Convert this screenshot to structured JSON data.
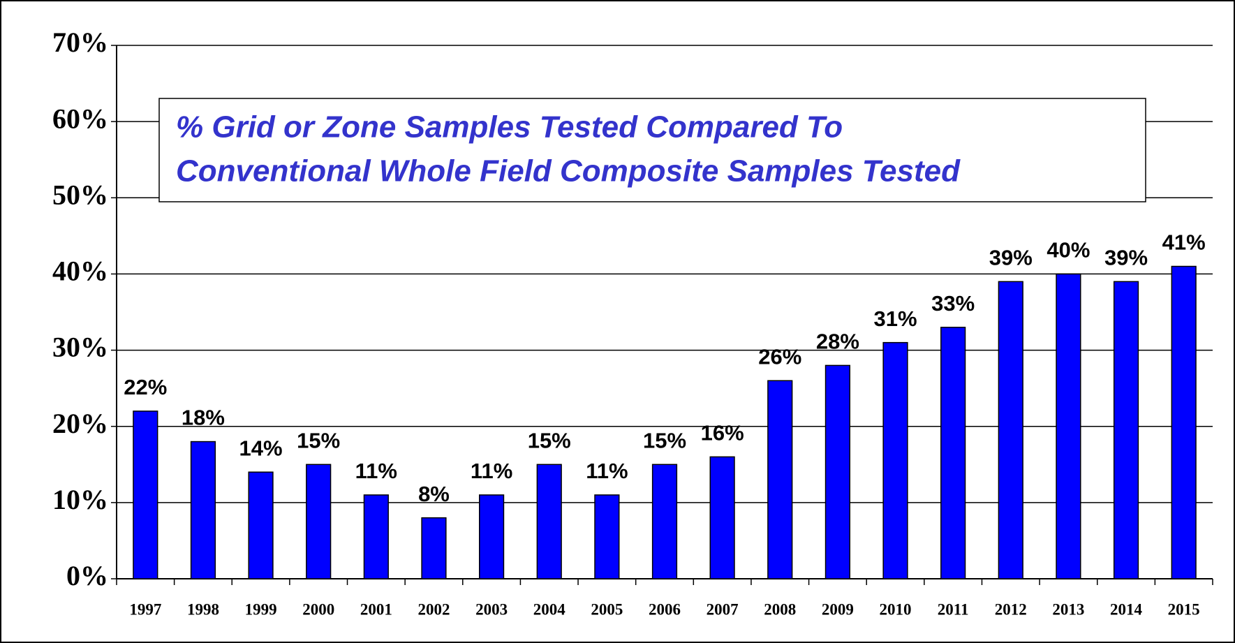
{
  "chart_data": {
    "type": "bar",
    "title": [
      "% Grid or Zone Samples Tested Compared To",
      "Conventional Whole Field Composite Samples Tested"
    ],
    "categories": [
      "1997",
      "1998",
      "1999",
      "2000",
      "2001",
      "2002",
      "2003",
      "2004",
      "2005",
      "2006",
      "2007",
      "2008",
      "2009",
      "2010",
      "2011",
      "2012",
      "2013",
      "2014",
      "2015"
    ],
    "values": [
      22,
      18,
      14,
      15,
      11,
      8,
      11,
      15,
      11,
      15,
      16,
      26,
      28,
      31,
      33,
      39,
      40,
      39,
      41
    ],
    "value_labels": [
      "22%",
      "18%",
      "14%",
      "15%",
      "11%",
      "8%",
      "11%",
      "15%",
      "11%",
      "15%",
      "16%",
      "26%",
      "28%",
      "31%",
      "33%",
      "39%",
      "40%",
      "39%",
      "41%"
    ],
    "color": "#0000ff",
    "ylim": [
      0,
      70
    ],
    "yticks": [
      {
        "value": 0,
        "label": "0%"
      },
      {
        "value": 10,
        "label": "10%"
      },
      {
        "value": 20,
        "label": "20%"
      },
      {
        "value": 30,
        "label": "30%"
      },
      {
        "value": 40,
        "label": "40%"
      },
      {
        "value": 50,
        "label": "50%"
      },
      {
        "value": 60,
        "label": "60%"
      },
      {
        "value": 70,
        "label": "70%"
      }
    ],
    "grid": true
  }
}
